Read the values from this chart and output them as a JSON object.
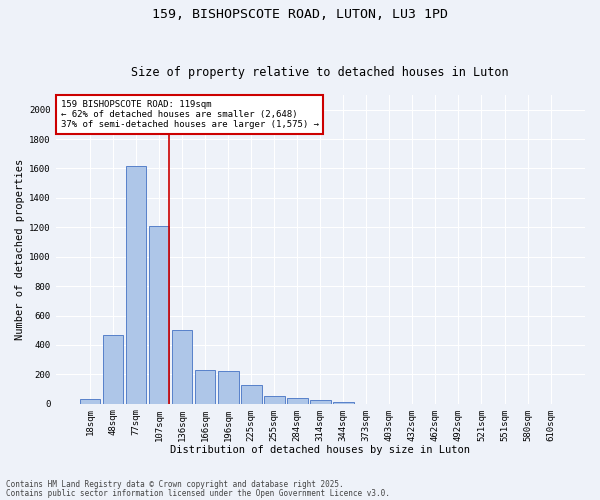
{
  "title1": "159, BISHOPSCOTE ROAD, LUTON, LU3 1PD",
  "title2": "Size of property relative to detached houses in Luton",
  "xlabel": "Distribution of detached houses by size in Luton",
  "ylabel": "Number of detached properties",
  "categories": [
    "18sqm",
    "48sqm",
    "77sqm",
    "107sqm",
    "136sqm",
    "166sqm",
    "196sqm",
    "225sqm",
    "255sqm",
    "284sqm",
    "314sqm",
    "344sqm",
    "373sqm",
    "403sqm",
    "432sqm",
    "462sqm",
    "492sqm",
    "521sqm",
    "551sqm",
    "580sqm",
    "610sqm"
  ],
  "values": [
    35,
    465,
    1620,
    1210,
    500,
    230,
    225,
    125,
    50,
    40,
    22,
    15,
    0,
    0,
    0,
    0,
    0,
    0,
    0,
    0,
    0
  ],
  "bar_color": "#aec6e8",
  "bar_edge_color": "#4472c4",
  "annotation_text": "159 BISHOPSCOTE ROAD: 119sqm\n← 62% of detached houses are smaller (2,648)\n37% of semi-detached houses are larger (1,575) →",
  "annotation_box_color": "#ffffff",
  "annotation_box_edge": "#cc0000",
  "red_line_color": "#cc0000",
  "red_line_x": 3.45,
  "ylim": [
    0,
    2100
  ],
  "yticks": [
    0,
    200,
    400,
    600,
    800,
    1000,
    1200,
    1400,
    1600,
    1800,
    2000
  ],
  "footer_line1": "Contains HM Land Registry data © Crown copyright and database right 2025.",
  "footer_line2": "Contains public sector information licensed under the Open Government Licence v3.0.",
  "bg_color": "#eef2f9",
  "grid_color": "#ffffff",
  "title_fontsize": 9.5,
  "subtitle_fontsize": 8.5,
  "axis_label_fontsize": 7.5,
  "tick_fontsize": 6.5,
  "annotation_fontsize": 6.5,
  "footer_fontsize": 5.5
}
